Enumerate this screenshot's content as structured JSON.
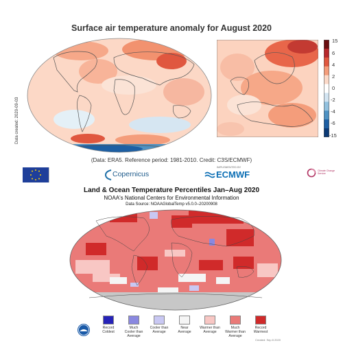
{
  "panel1": {
    "title": "Surface air temperature anomaly for August 2020",
    "credit": "(Data: ERA5.  Reference period: 1981-2010.  Credit: C3S/ECMWF)",
    "side_note": "Data created: 2020-09-03",
    "colorbar": {
      "ticks": [
        "15",
        "6",
        "4",
        "2",
        "0",
        "-2",
        "-4",
        "-6",
        "-15"
      ],
      "colors": [
        "#6b0e10",
        "#b7282c",
        "#e0573f",
        "#f49d7b",
        "#fbd9c8",
        "#ffffff",
        "#d2e4f1",
        "#92c1de",
        "#4e92c3",
        "#1d5fa3",
        "#0c3a76"
      ]
    },
    "logos": {
      "copernicus": "Copernicus",
      "ecmwf": "ECMWF",
      "ecmwf_small": "IMPLEMENTED BY",
      "climate": "Climate Change Service"
    }
  },
  "panel2": {
    "title": "Land & Ocean Temperature Percentiles Jan–Aug 2020",
    "subtitle": "NOAA's National Centers for Environmental Information",
    "source": "Data Source: NOAAGlobalTemp v5.0.0–20200908",
    "footnote": "Created: Sep 8 2020",
    "legend": [
      {
        "label": "Record\nColdest",
        "color": "#2623b8"
      },
      {
        "label": "Much\nCooler than\nAverage",
        "color": "#8a88e0"
      },
      {
        "label": "Cooler than\nAverage",
        "color": "#c9c8f3"
      },
      {
        "label": "Near\nAverage",
        "color": "#f5f5f5"
      },
      {
        "label": "Warmer than\nAverage",
        "color": "#f8c7c4"
      },
      {
        "label": "Much\nWarmer than\nAverage",
        "color": "#ea7a78"
      },
      {
        "label": "Record\nWarmest",
        "color": "#d02a2a"
      }
    ]
  }
}
